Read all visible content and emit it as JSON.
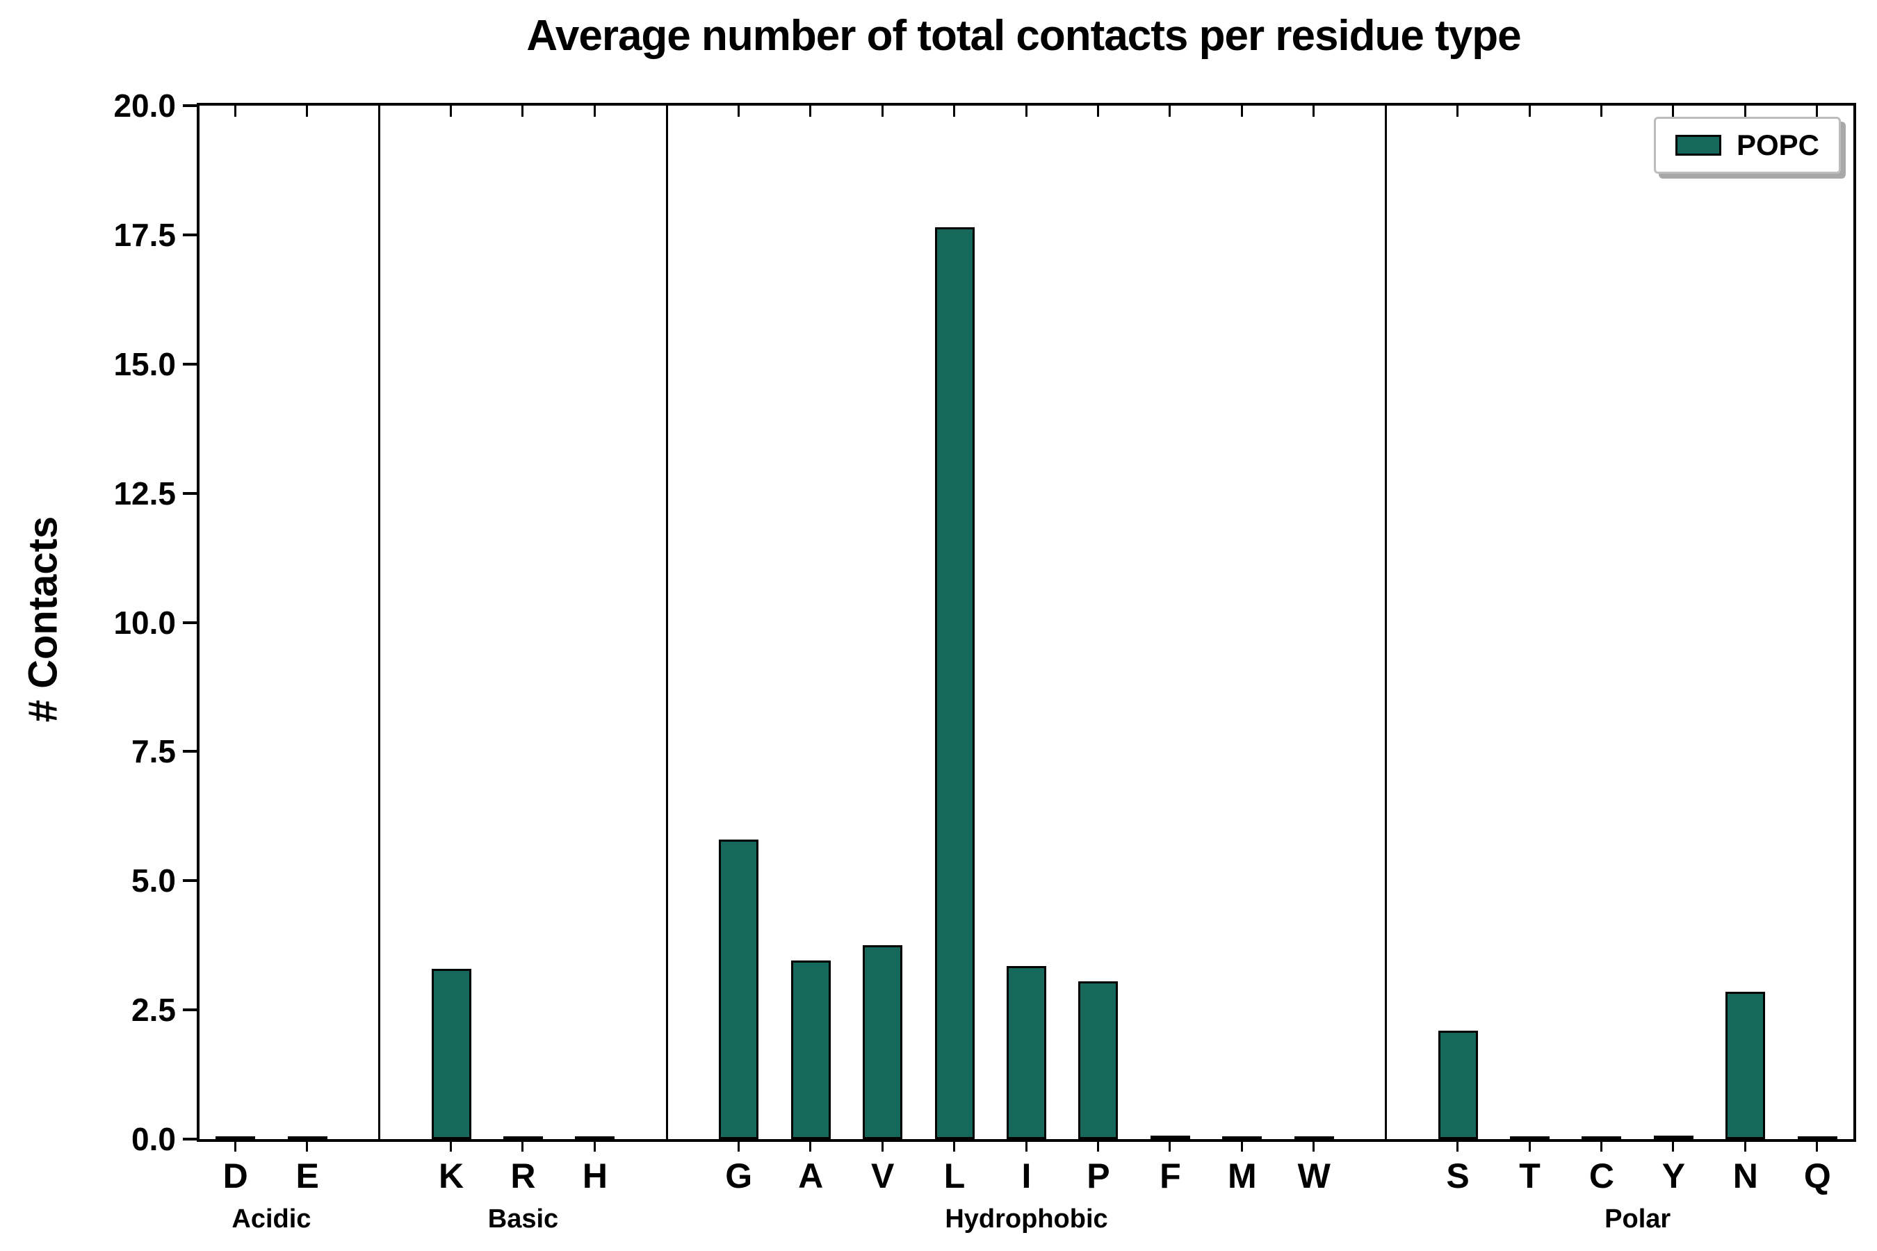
{
  "chart_data": {
    "type": "bar",
    "title": "Average number of total contacts per residue type",
    "ylabel": "# Contacts",
    "xlabel": "",
    "ylim": [
      0,
      20
    ],
    "yticks": [
      0.0,
      2.5,
      5.0,
      7.5,
      10.0,
      12.5,
      15.0,
      17.5,
      20.0
    ],
    "grid": false,
    "legend": {
      "label": "POPC",
      "color": "#16695a",
      "position": "upper right"
    },
    "groups": [
      {
        "label": "Acidic",
        "residues": [
          "D",
          "E"
        ],
        "values": [
          0.0,
          0.0
        ]
      },
      {
        "label": "Basic",
        "residues": [
          "K",
          "R",
          "H"
        ],
        "values": [
          3.3,
          0.0,
          0.0
        ]
      },
      {
        "label": "Hydrophobic",
        "residues": [
          "G",
          "A",
          "V",
          "L",
          "I",
          "P",
          "F",
          "M",
          "W"
        ],
        "values": [
          5.8,
          3.45,
          3.75,
          17.65,
          3.35,
          3.05,
          0.07,
          0.0,
          0.0
        ]
      },
      {
        "label": "Polar",
        "residues": [
          "S",
          "T",
          "C",
          "Y",
          "N",
          "Q"
        ],
        "values": [
          2.1,
          0.0,
          0.0,
          0.07,
          2.85,
          0.0
        ]
      }
    ]
  }
}
